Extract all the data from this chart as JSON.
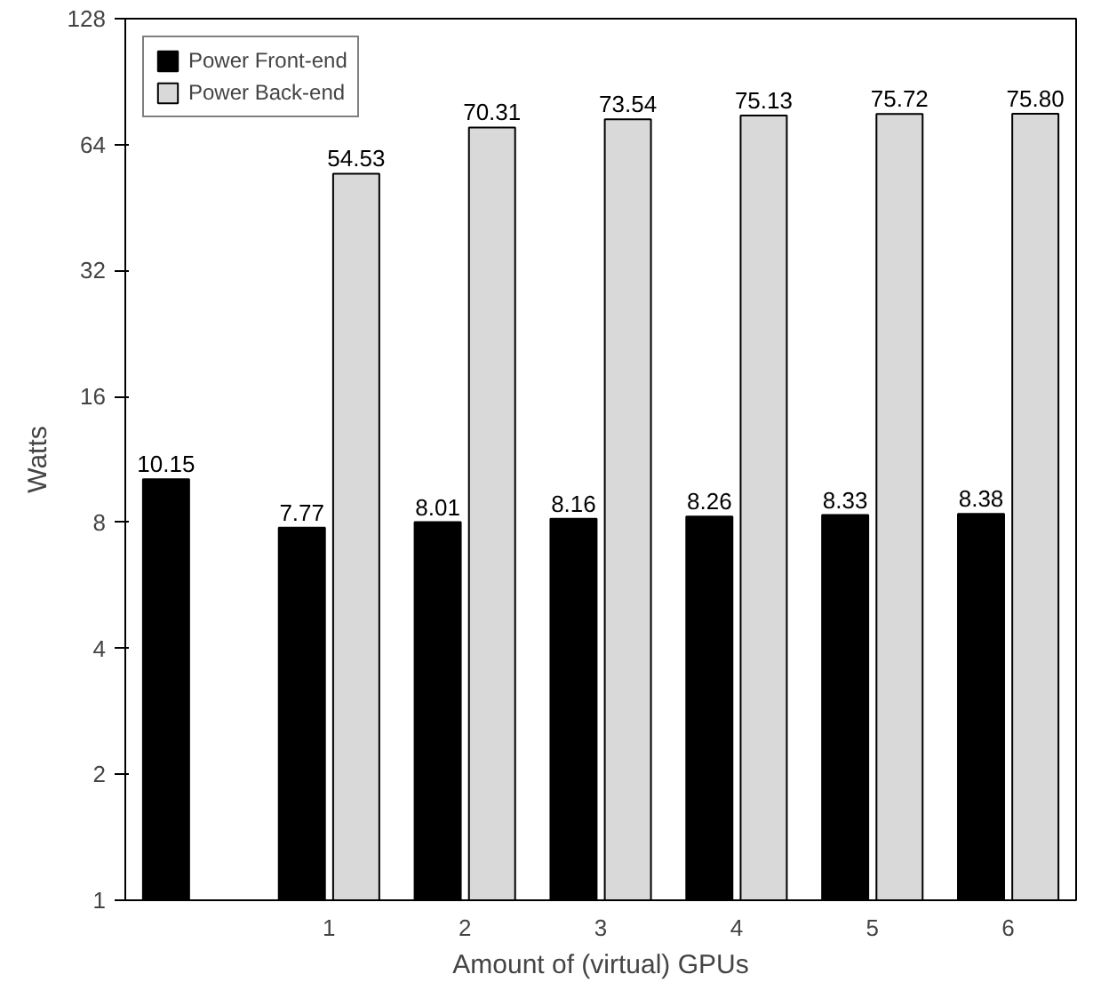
{
  "chart_data": {
    "type": "bar",
    "xlabel": "Amount of (virtual) GPUs",
    "ylabel": "Watts",
    "categories": [
      null,
      "1",
      "2",
      "3",
      "4",
      "5",
      "6"
    ],
    "series": [
      {
        "name": "Power Front-end",
        "color": "#000000",
        "values": [
          10.15,
          7.77,
          8.01,
          8.16,
          8.26,
          8.33,
          8.38
        ],
        "value_labels": [
          "10.15",
          "7.77",
          "8.01",
          "8.16",
          "8.26",
          "8.33",
          "8.38"
        ]
      },
      {
        "name": "Power Back-end",
        "color": "#d9d9d9",
        "values": [
          null,
          54.53,
          70.31,
          73.54,
          75.13,
          75.72,
          75.8
        ],
        "value_labels": [
          null,
          "54.53",
          "70.31",
          "73.54",
          "75.13",
          "75.72",
          "75.80"
        ]
      }
    ],
    "log": "y",
    "ylim": [
      1,
      128
    ],
    "yticks": [
      1,
      2,
      4,
      8,
      16,
      32,
      64,
      128
    ],
    "grid": false,
    "legend": "top left"
  }
}
